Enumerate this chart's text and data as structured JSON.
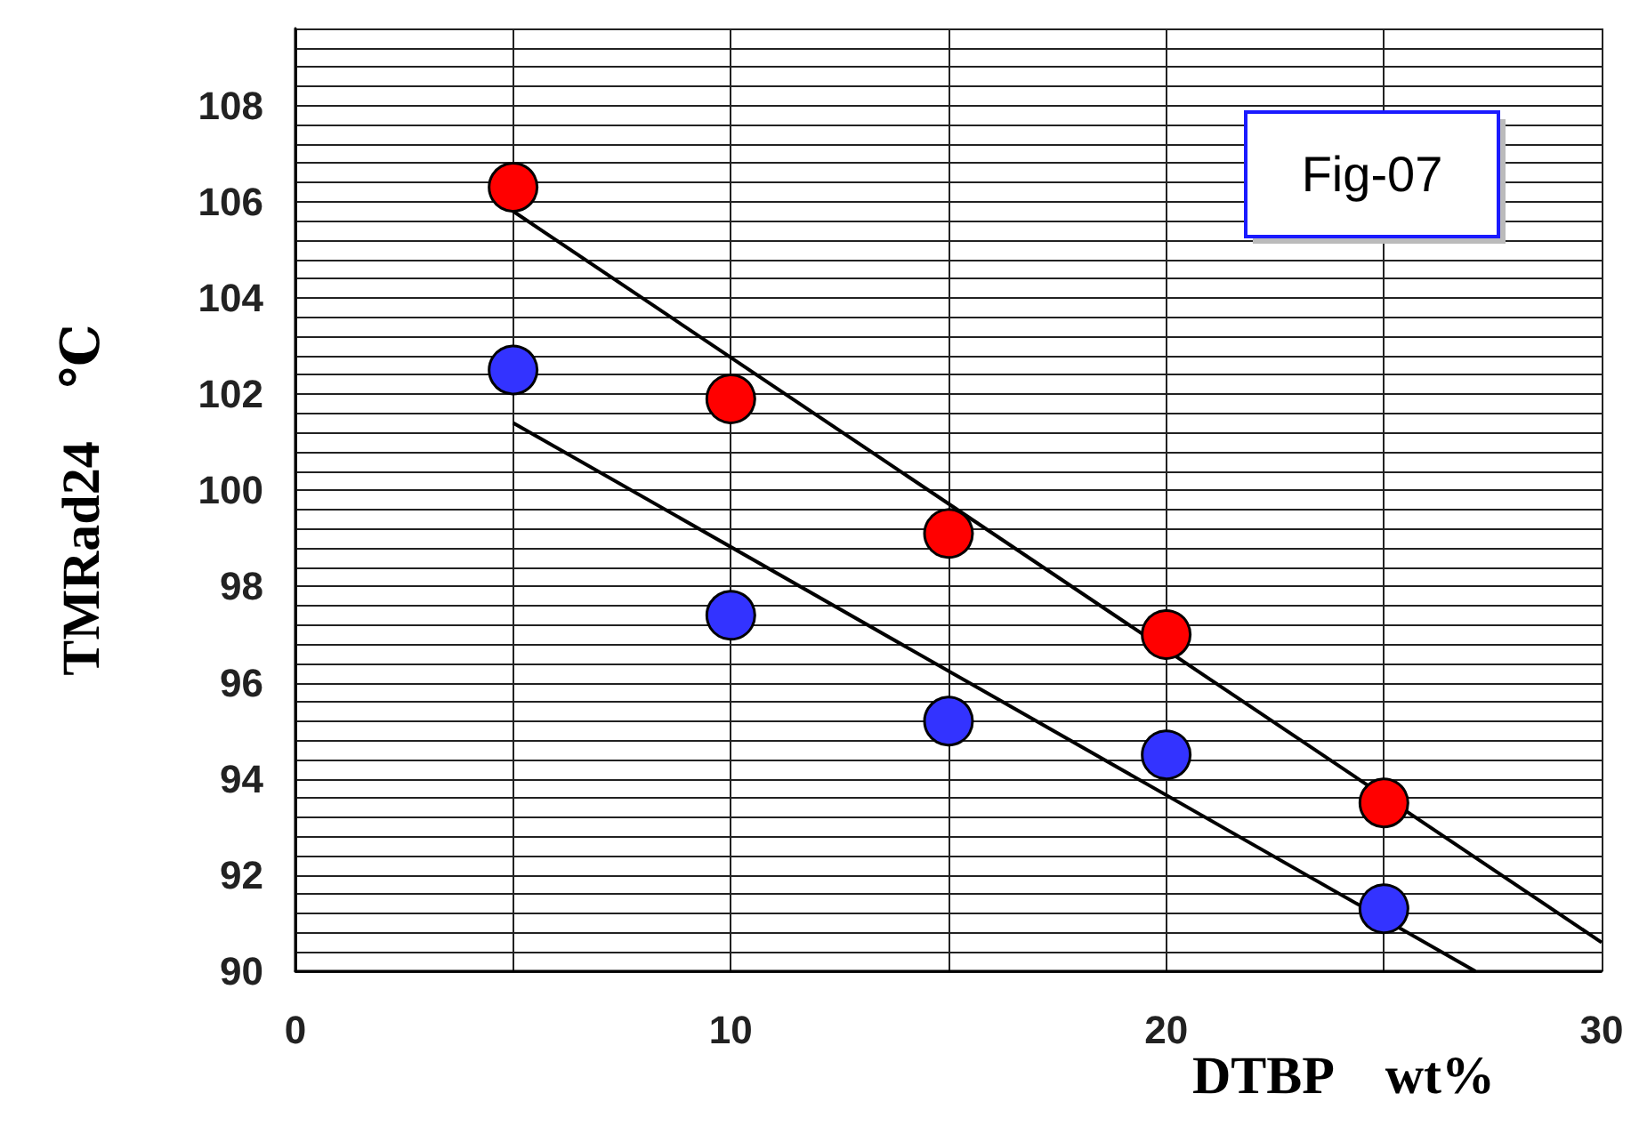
{
  "chart_data": {
    "type": "scatter",
    "xlabel": "DTBP　wt%",
    "ylabel": "TMRad24　℃",
    "annotations": [
      "Fig-07"
    ],
    "xlim": [
      0,
      30
    ],
    "xticks": [
      0,
      {
        "value": 5,
        "label": null
      },
      10,
      {
        "value": 15,
        "label": null
      },
      20,
      {
        "value": 25,
        "label": null
      },
      30
    ],
    "ylim": [
      90,
      109.6
    ],
    "yticks": [
      90,
      {
        "value": 90.4,
        "label": null
      },
      {
        "value": 90.8,
        "label": null
      },
      {
        "value": 91.2,
        "label": null
      },
      {
        "value": 91.6,
        "label": null
      },
      92,
      {
        "value": 92.4,
        "label": null
      },
      {
        "value": 92.8,
        "label": null
      },
      {
        "value": 93.2,
        "label": null
      },
      {
        "value": 93.6,
        "label": null
      },
      94,
      {
        "value": 94.4,
        "label": null
      },
      {
        "value": 94.8,
        "label": null
      },
      {
        "value": 95.2,
        "label": null
      },
      {
        "value": 95.6,
        "label": null
      },
      96,
      {
        "value": 96.4,
        "label": null
      },
      {
        "value": 96.8,
        "label": null
      },
      {
        "value": 97.2,
        "label": null
      },
      {
        "value": 97.6,
        "label": null
      },
      98,
      {
        "value": 98.4,
        "label": null
      },
      {
        "value": 98.8,
        "label": null
      },
      {
        "value": 99.2,
        "label": null
      },
      {
        "value": 99.6,
        "label": null
      },
      100,
      {
        "value": 100.4,
        "label": null
      },
      {
        "value": 100.8,
        "label": null
      },
      {
        "value": 101.2,
        "label": null
      },
      {
        "value": 101.6,
        "label": null
      },
      102,
      {
        "value": 102.4,
        "label": null
      },
      {
        "value": 102.8,
        "label": null
      },
      {
        "value": 103.2,
        "label": null
      },
      {
        "value": 103.6,
        "label": null
      },
      104,
      {
        "value": 104.4,
        "label": null
      },
      {
        "value": 104.8,
        "label": null
      },
      {
        "value": 105.2,
        "label": null
      },
      {
        "value": 105.6,
        "label": null
      },
      106,
      {
        "value": 106.4,
        "label": null
      },
      {
        "value": 106.8,
        "label": null
      },
      {
        "value": 107.2,
        "label": null
      },
      {
        "value": 107.6,
        "label": null
      },
      108,
      {
        "value": 108.4,
        "label": null
      },
      {
        "value": 108.8,
        "label": null
      },
      {
        "value": 109.2,
        "label": null
      },
      {
        "value": 109.6,
        "label": null
      }
    ],
    "grid": true,
    "marker": "circle",
    "series": [
      {
        "color": "#ff0000",
        "x": [
          5,
          10,
          15,
          20,
          25
        ],
        "values": [
          106.3,
          101.9,
          99.1,
          97.0,
          93.5
        ]
      },
      {
        "color": "#3333ff",
        "x": [
          5,
          10,
          15,
          20,
          25
        ],
        "values": [
          102.5,
          97.4,
          95.2,
          94.5,
          91.3
        ]
      },
      {
        "type": "line",
        "color": "#000000",
        "marker": "none",
        "x": [
          5,
          30
        ],
        "values": [
          105.8,
          90.6
        ]
      },
      {
        "type": "line",
        "color": "#000000",
        "marker": "none",
        "x": [
          5,
          27.1
        ],
        "values": [
          101.4,
          90
        ]
      }
    ]
  }
}
